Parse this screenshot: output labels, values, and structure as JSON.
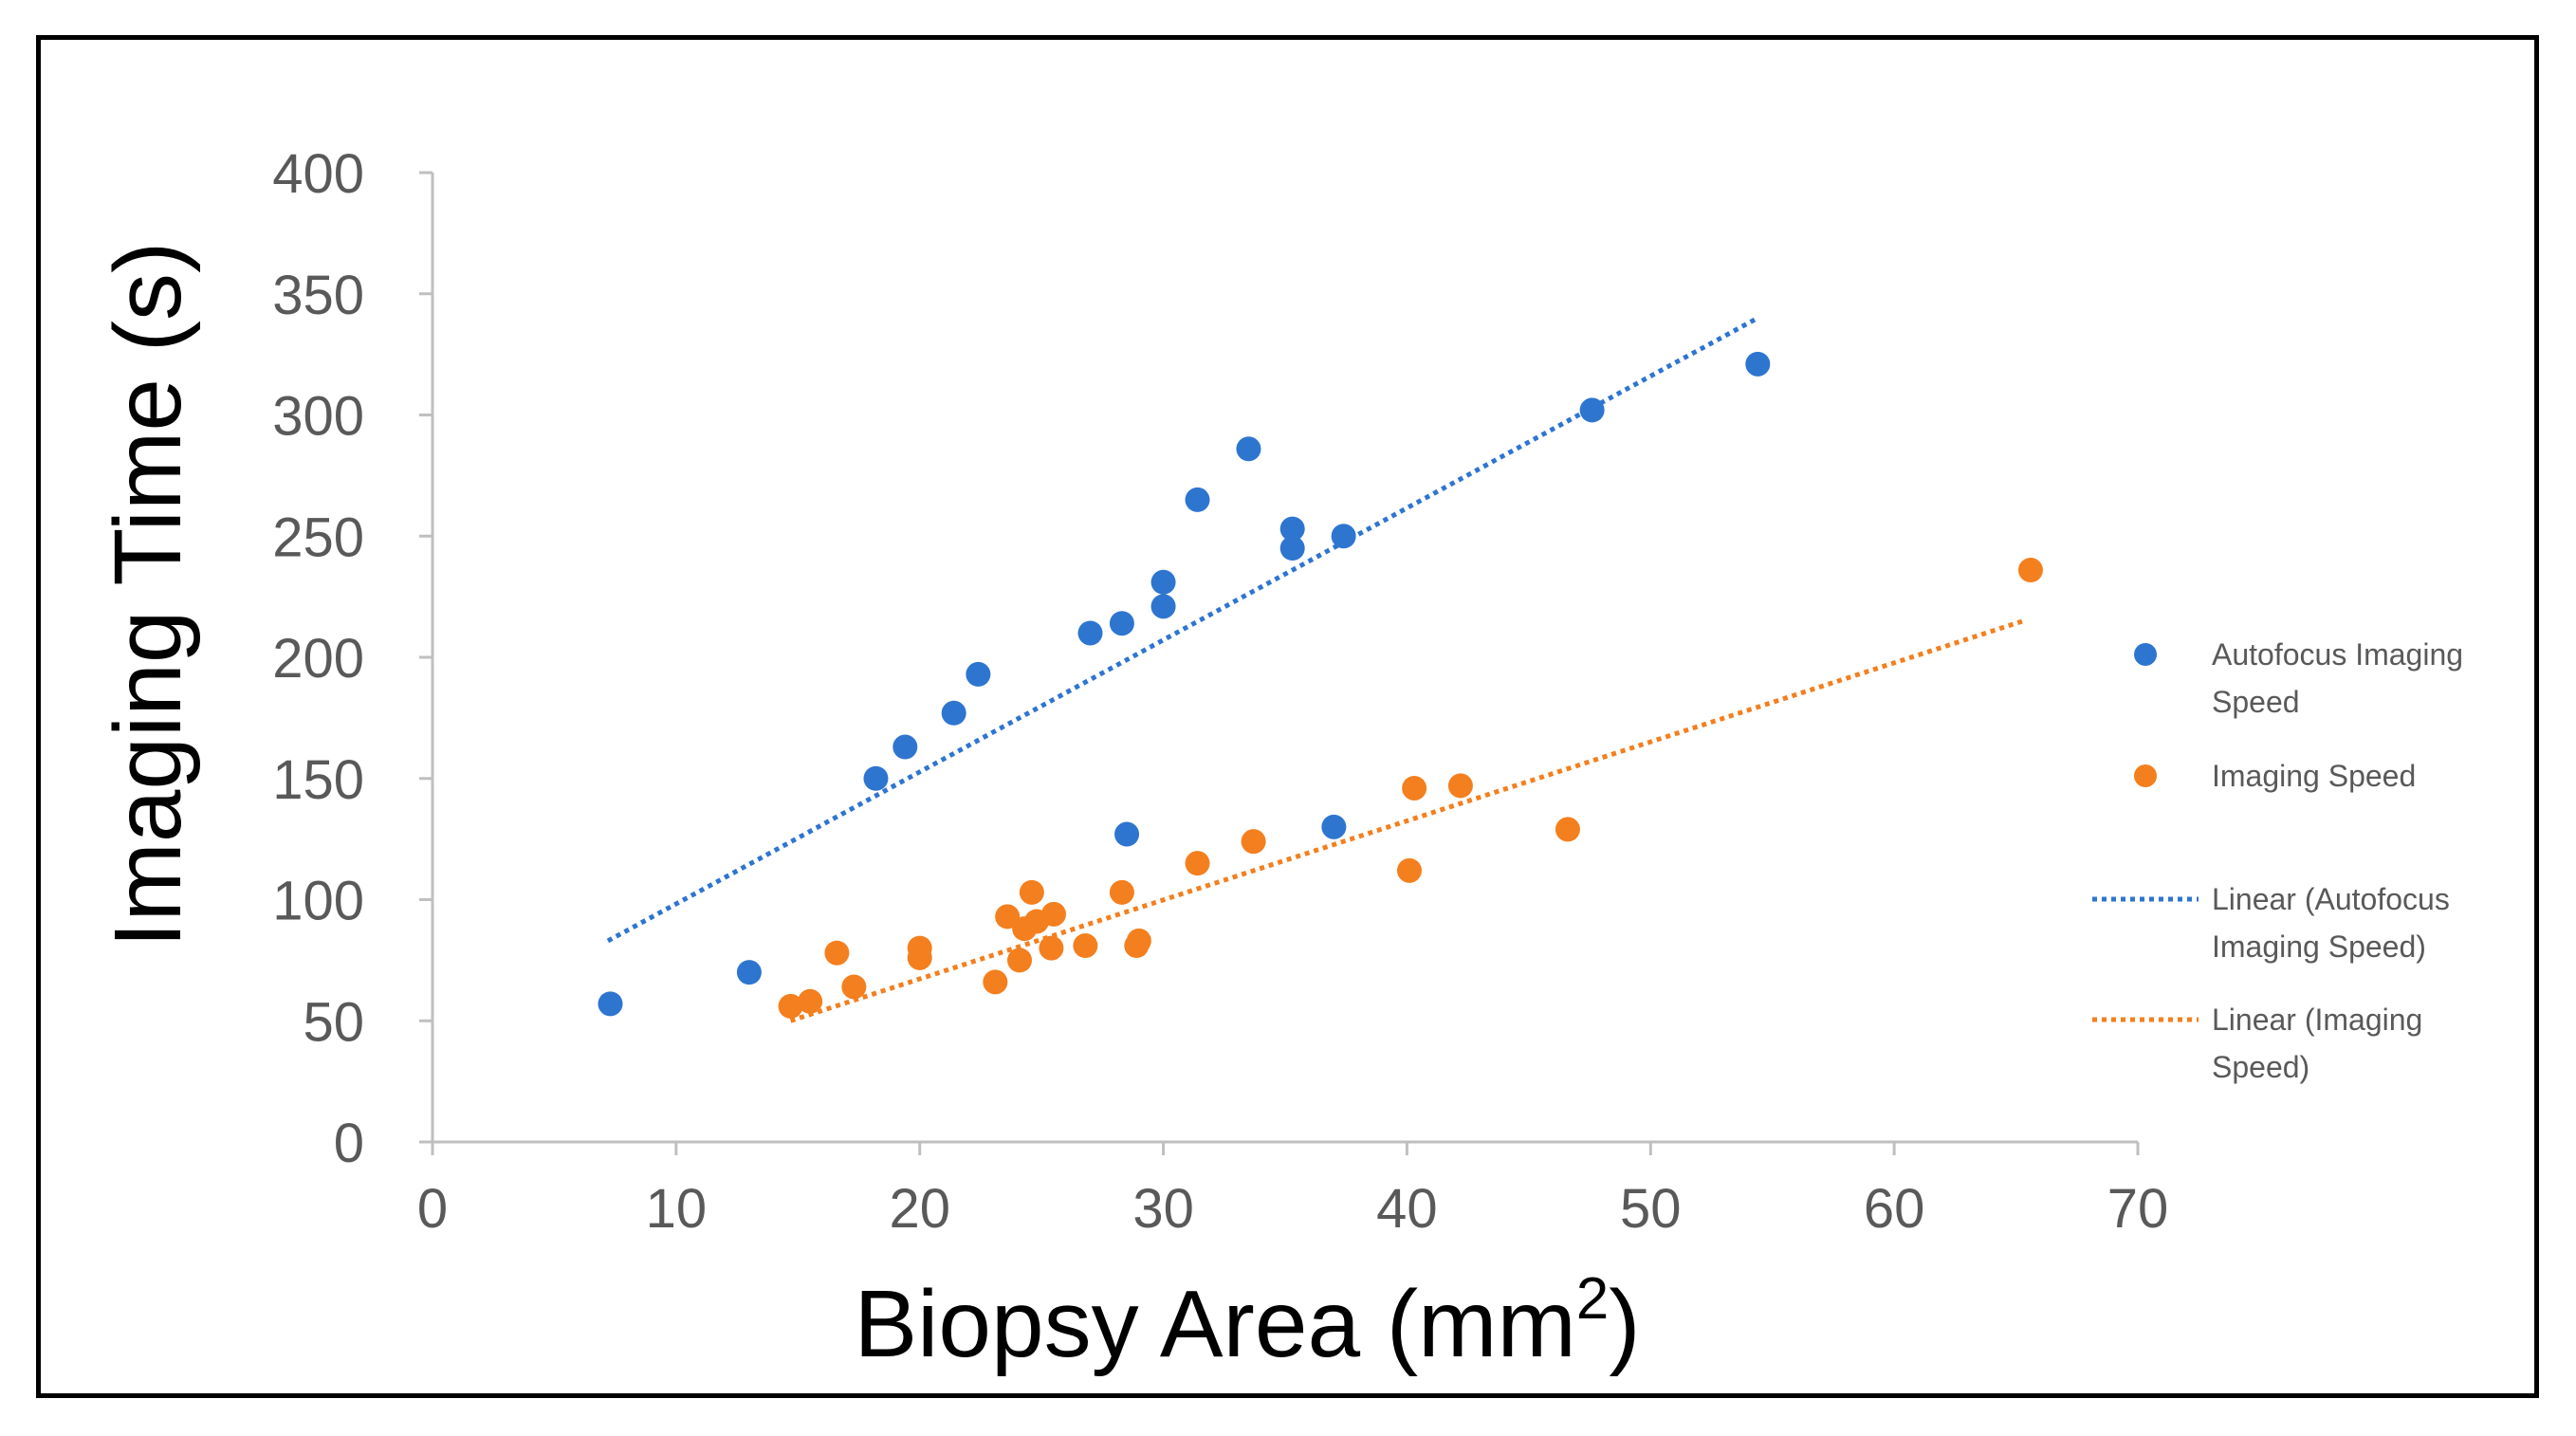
{
  "chart_data": {
    "type": "scatter",
    "title": "",
    "xlabel": "Biopsy Area (mm",
    "xlabel_superscript": "2",
    "xlabel_close": ")",
    "ylabel": "Imaging Time (s)",
    "xlim": [
      0,
      70
    ],
    "ylim": [
      0,
      400
    ],
    "xticks": [
      0,
      10,
      20,
      30,
      40,
      50,
      60,
      70
    ],
    "yticks": [
      0,
      50,
      100,
      150,
      200,
      250,
      300,
      350,
      400
    ],
    "grid": false,
    "legend_position": "right",
    "series": [
      {
        "name": "Autofocus Imaging Speed",
        "color": "#2E75D0",
        "points": [
          [
            7.3,
            57
          ],
          [
            13,
            70
          ],
          [
            18.2,
            150
          ],
          [
            19.4,
            163
          ],
          [
            21.4,
            177
          ],
          [
            22.4,
            193
          ],
          [
            27,
            210
          ],
          [
            28.3,
            214
          ],
          [
            28.5,
            127
          ],
          [
            30,
            221
          ],
          [
            30,
            231
          ],
          [
            31.4,
            265
          ],
          [
            33.5,
            286
          ],
          [
            35.3,
            253
          ],
          [
            35.3,
            245
          ],
          [
            37,
            130
          ],
          [
            37.4,
            250
          ],
          [
            47.6,
            302
          ],
          [
            54.4,
            321
          ]
        ],
        "trendline": {
          "name": "Linear (Autofocus Imaging Speed)",
          "x": [
            7.2,
            54.4
          ],
          "y": [
            83,
            340
          ]
        }
      },
      {
        "name": "Imaging Speed",
        "color": "#F47F1E",
        "points": [
          [
            14.7,
            56
          ],
          [
            15.5,
            58
          ],
          [
            16.6,
            78
          ],
          [
            17.3,
            64
          ],
          [
            20,
            80
          ],
          [
            20,
            76
          ],
          [
            23.1,
            66
          ],
          [
            23.6,
            93
          ],
          [
            24.1,
            75
          ],
          [
            24.3,
            88
          ],
          [
            24.6,
            103
          ],
          [
            24.8,
            91
          ],
          [
            25.4,
            80
          ],
          [
            25.5,
            94
          ],
          [
            26.8,
            81
          ],
          [
            28.3,
            103
          ],
          [
            28.9,
            81
          ],
          [
            29,
            83
          ],
          [
            31.4,
            115
          ],
          [
            33.7,
            124
          ],
          [
            40.1,
            112
          ],
          [
            40.3,
            146
          ],
          [
            42.2,
            147
          ],
          [
            46.6,
            129
          ],
          [
            65.6,
            236
          ]
        ],
        "trendline": {
          "name": "Linear (Imaging Speed)",
          "x": [
            14.7,
            65.3
          ],
          "y": [
            50,
            215
          ]
        }
      }
    ],
    "legend": [
      {
        "kind": "marker",
        "lines": [
          "Autofocus Imaging",
          "Speed"
        ],
        "color": "#2E75D0"
      },
      {
        "kind": "marker",
        "lines": [
          "Imaging Speed"
        ],
        "color": "#F47F1E"
      },
      {
        "kind": "line",
        "lines": [
          "Linear (Autofocus",
          "Imaging Speed)"
        ],
        "color": "#2E75D0"
      },
      {
        "kind": "line",
        "lines": [
          "Linear (Imaging",
          "Speed)"
        ],
        "color": "#F47F1E"
      }
    ]
  }
}
